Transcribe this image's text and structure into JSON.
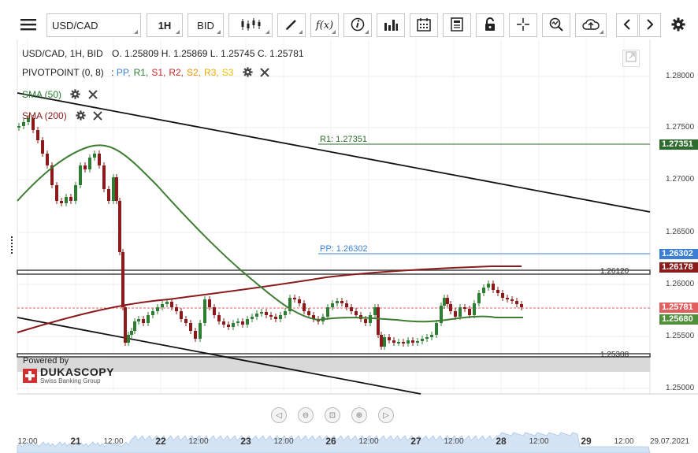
{
  "toolbar": {
    "symbol": "USD/CAD",
    "timeframe": "1H",
    "price_type": "BID",
    "fx_label": "f(x)"
  },
  "legend": {
    "ohlc_title": "USD/CAD, 1H, BID",
    "ohlc_values": "O. 1.25809 H. 1.25869 L. 1.25745 C. 1.25781",
    "pivot_title": "PIVOTPOINT (0, 8)",
    "pivot_prefix": ":",
    "pivot_items": [
      {
        "label": "PP,",
        "color": "#3a7fd5"
      },
      {
        "label": "R1,",
        "color": "#2e7d32"
      },
      {
        "label": "S1,",
        "color": "#c62828"
      },
      {
        "label": "R2,",
        "color": "#c62828"
      },
      {
        "label": "S2,",
        "color": "#e69500"
      },
      {
        "label": "R3,",
        "color": "#e6a800"
      },
      {
        "label": "S3",
        "color": "#e6c200"
      }
    ],
    "sma50_label": "SMA (50)",
    "sma200_label": "SMA (200)",
    "sma50_color": "#2e7d32",
    "sma200_color": "#8b1a1a"
  },
  "levels": {
    "r1_label": "R1: 1.27351",
    "pp_label": "PP: 1.26302",
    "upper_line_label": "1.26120",
    "lower_line_label": "1.25308"
  },
  "price_axis": {
    "ticks": [
      "1.28000",
      "1.27500",
      "1.27000",
      "1.26500",
      "1.26000",
      "1.25500",
      "1.25000"
    ],
    "badges": [
      {
        "value": "1.27351",
        "color": "#2e6b2e"
      },
      {
        "value": "1.26302",
        "color": "#3a7fd5"
      },
      {
        "value": "1.26178",
        "color": "#8b1a1a"
      },
      {
        "value": "1.25781",
        "color": "#e06060"
      },
      {
        "value": "1.25680",
        "color": "#4f8f3a"
      }
    ]
  },
  "time_axis": {
    "ticks": [
      {
        "label": "12:00",
        "big": false
      },
      {
        "label": "21",
        "big": true
      },
      {
        "label": "12:00",
        "big": false
      },
      {
        "label": "22",
        "big": true
      },
      {
        "label": "12:00",
        "big": false
      },
      {
        "label": "23",
        "big": true
      },
      {
        "label": "12:00",
        "big": false
      },
      {
        "label": "26",
        "big": true
      },
      {
        "label": "12:00",
        "big": false
      },
      {
        "label": "27",
        "big": true
      },
      {
        "label": "12:00",
        "big": false
      },
      {
        "label": "28",
        "big": true
      },
      {
        "label": "12:00",
        "big": false
      },
      {
        "label": "29",
        "big": true
      },
      {
        "label": "12:00",
        "big": false
      },
      {
        "label": "29.07.2021",
        "big": false
      }
    ]
  },
  "branding": {
    "powered_by": "Powered by",
    "brand": "DUKASCOPY",
    "tagline": "Swiss Banking Group"
  }
}
